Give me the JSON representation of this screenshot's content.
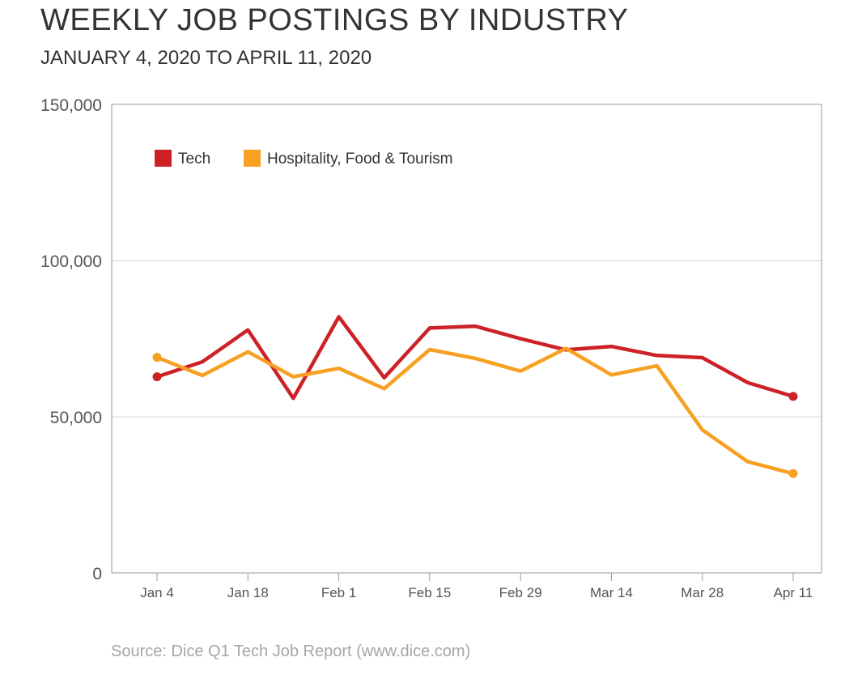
{
  "header": {
    "title": "WEEKLY JOB POSTINGS BY INDUSTRY",
    "subtitle": "JANUARY 4, 2020 TO APRIL 11, 2020"
  },
  "footer": {
    "source": "Source: Dice Q1 Tech Job Report (www.dice.com)"
  },
  "chart_data": {
    "type": "line",
    "title": "WEEKLY JOB POSTINGS BY INDUSTRY",
    "subtitle": "JANUARY 4, 2020 TO APRIL 11, 2020",
    "xlabel": "",
    "ylabel": "",
    "ylim": [
      0,
      150000
    ],
    "yticks": [
      0,
      50000,
      100000,
      150000
    ],
    "ytick_labels": [
      "0",
      "50,000",
      "100,000",
      "150,000"
    ],
    "x": [
      "Jan 4",
      "Jan 11",
      "Jan 18",
      "Jan 25",
      "Feb 1",
      "Feb 8",
      "Feb 15",
      "Feb 22",
      "Feb 29",
      "Mar 7",
      "Mar 14",
      "Mar 21",
      "Mar 28",
      "Apr 4",
      "Apr 11"
    ],
    "xtick_labels": [
      "Jan 4",
      "Jan 18",
      "Feb 1",
      "Feb 15",
      "Feb 29",
      "Mar 14",
      "Mar 28",
      "Apr 11"
    ],
    "xtick_index": [
      0,
      2,
      4,
      6,
      8,
      10,
      12,
      14
    ],
    "grid": "horizontal",
    "legend_position": "top-left",
    "series": [
      {
        "name": "Tech",
        "color": "#cc2127",
        "values": [
          62800,
          67600,
          77800,
          55900,
          82000,
          62500,
          78400,
          79000,
          75000,
          71400,
          72500,
          69600,
          68900,
          60900,
          56500
        ]
      },
      {
        "name": "Hospitality, Food & Tourism",
        "color": "#f7a021",
        "values": [
          69000,
          63200,
          70800,
          62800,
          65500,
          59000,
          71500,
          68700,
          64600,
          71900,
          63400,
          66300,
          45800,
          35600,
          31800
        ]
      }
    ]
  }
}
